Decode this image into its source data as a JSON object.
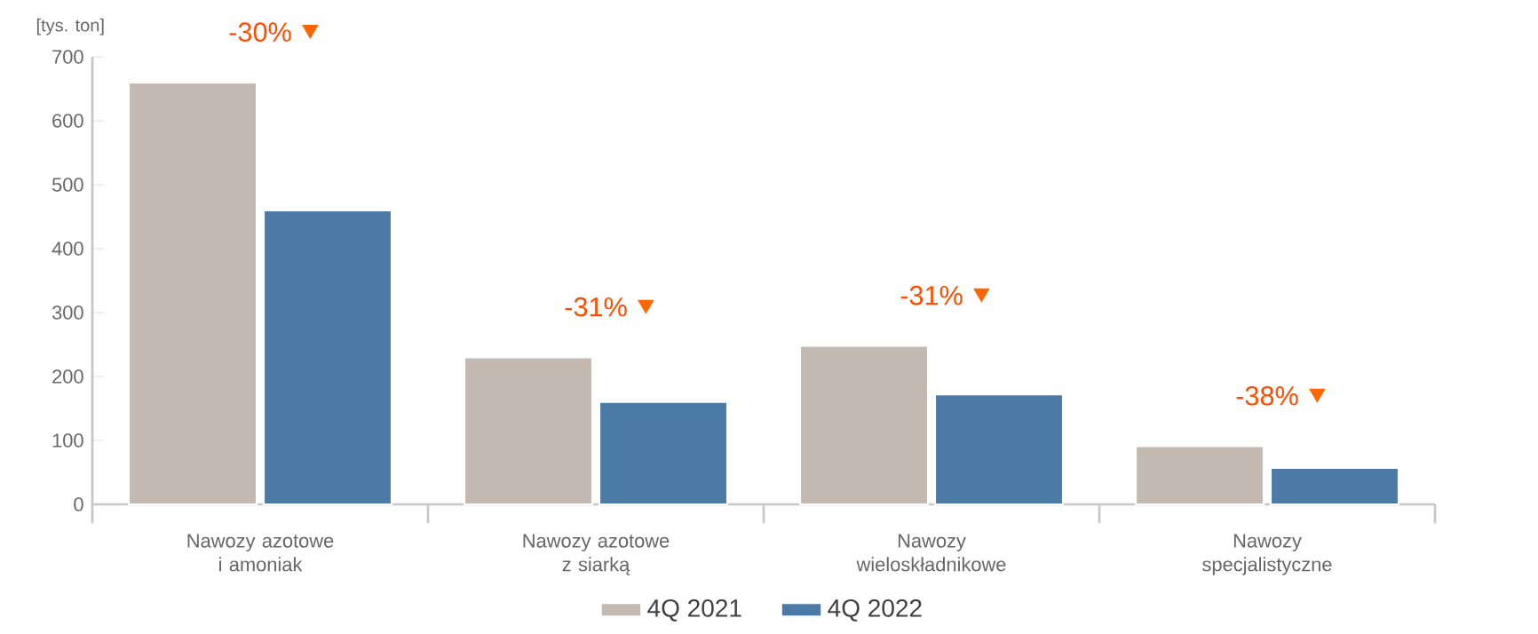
{
  "chart_data": {
    "type": "bar",
    "ylabel": "[tys. ton]",
    "categories": [
      "Nawozy azotowe i amoniak",
      "Nawozy azotowe z siarką",
      "Nawozy wieloskładnikowe",
      "Nawozy specjalistyczne"
    ],
    "series": [
      {
        "name": "4Q 2021",
        "color": "#c4b9b0",
        "values": [
          660,
          230,
          248,
          91
        ]
      },
      {
        "name": "4Q 2022",
        "color": "#4a7aa5",
        "values": [
          460,
          160,
          172,
          57
        ]
      }
    ],
    "ylim": [
      0,
      700
    ],
    "yticks": [
      0,
      100,
      200,
      300,
      400,
      500,
      600,
      700
    ],
    "annotations": [
      "-30%",
      "-31%",
      "-31%",
      "-38%"
    ],
    "legend": "bottom",
    "grid": false
  }
}
